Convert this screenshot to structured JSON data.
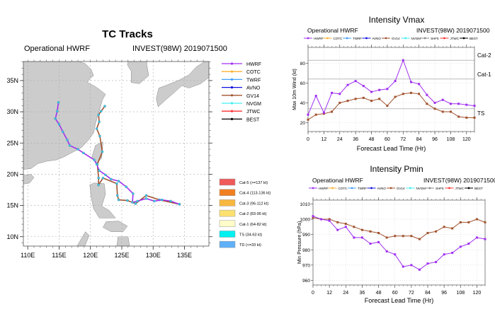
{
  "map_panel": {
    "title": "TC Tracks",
    "left_label": "Operational HWRF",
    "right_label": "INVEST(98W) 2019071500",
    "lon_ticks": [
      110,
      115,
      120,
      125,
      130,
      135
    ],
    "lon_tick_labels": [
      "110E",
      "115E",
      "120E",
      "125E",
      "130E",
      "135E"
    ],
    "lat_ticks": [
      10,
      15,
      20,
      25,
      30,
      35
    ],
    "lat_tick_labels": [
      "10N",
      "15N",
      "20N",
      "25N",
      "30N",
      "35N"
    ],
    "lon_range": [
      109.3,
      138.9
    ],
    "lat_range": [
      8.5,
      38.05
    ],
    "land_color": "#cccccc",
    "marker_color": "#3fc8e4",
    "legend": [
      {
        "name": "HWRF",
        "color": "#a030f0"
      },
      {
        "name": "COTC",
        "color": "#ffb030"
      },
      {
        "name": "TWRF",
        "color": "#40a0ff"
      },
      {
        "name": "AVNO",
        "color": "#1010e0"
      },
      {
        "name": "GV14",
        "color": "#a0522d"
      },
      {
        "name": "NVGM",
        "color": "#40f0f0"
      },
      {
        "name": "JTWC",
        "color": "#ff3030"
      },
      {
        "name": "BEST",
        "color": "#000000"
      }
    ],
    "category_legend": [
      {
        "label": "Cat-5 (>=137 kt)",
        "color": "#f05a5a"
      },
      {
        "label": "Cat-4 (113-136 kt)",
        "color": "#f08020"
      },
      {
        "label": "Cat-3 (96-112 kt)",
        "color": "#f8b840"
      },
      {
        "label": "Cat-2 (83-95 kt)",
        "color": "#fce070"
      },
      {
        "label": "Cat-1 (64-82 kt)",
        "color": "#fefcc8"
      },
      {
        "label": "TS (34-63 kt)",
        "color": "#00f0f0"
      },
      {
        "label": "TD (<=33 kt)",
        "color": "#60b0f8"
      }
    ],
    "tracks": [
      {
        "name": "GV14",
        "color": "#a0522d",
        "points": [
          [
            134.2,
            15.2
          ],
          [
            131.0,
            15.9
          ],
          [
            128.9,
            16.6
          ],
          [
            127.2,
            15.3
          ],
          [
            125.9,
            15.8
          ],
          [
            124.5,
            15.9
          ],
          [
            124.3,
            16.6
          ],
          [
            124.2,
            18.5
          ],
          [
            122.0,
            19.4
          ],
          [
            121.3,
            18.3
          ],
          [
            121.3,
            19.4
          ],
          [
            121.1,
            21.6
          ],
          [
            121.9,
            23.6
          ],
          [
            121.5,
            26.1
          ],
          [
            121.0,
            27.3
          ],
          [
            121.4,
            28.4
          ],
          [
            121.3,
            29.5
          ],
          [
            121.7,
            30.1
          ],
          [
            122.3,
            30.9
          ]
        ]
      },
      {
        "name": "HWRF",
        "color": "#a030f0",
        "points": [
          [
            134.2,
            15.2
          ],
          [
            132.8,
            15.7
          ],
          [
            131.4,
            15.9
          ],
          [
            130.2,
            15.7
          ],
          [
            128.9,
            16.1
          ],
          [
            127.5,
            15.7
          ],
          [
            126.7,
            15.5
          ],
          [
            126.8,
            16.9
          ],
          [
            125.7,
            18.0
          ],
          [
            124.5,
            18.9
          ],
          [
            123.3,
            19.2
          ],
          [
            122.4,
            19.9
          ],
          [
            121.4,
            20.6
          ],
          [
            121.0,
            21.6
          ],
          [
            120.6,
            22.3
          ],
          [
            118.9,
            23.4
          ],
          [
            118.0,
            24.0
          ],
          [
            116.7,
            24.6
          ],
          [
            116.3,
            25.5
          ],
          [
            115.6,
            26.8
          ],
          [
            115.0,
            28.0
          ],
          [
            114.4,
            28.9
          ],
          [
            114.7,
            30.1
          ],
          [
            114.9,
            31.5
          ]
        ]
      }
    ]
  },
  "vmax_panel": {
    "left_label": "Operational HWRF",
    "right_label": "INVEST(98W) 2019071500",
    "legend": [
      {
        "name": "HWRF",
        "color": "#a030f0"
      },
      {
        "name": "COTC",
        "color": "#ffb030"
      },
      {
        "name": "TWRF",
        "color": "#40a0ff"
      },
      {
        "name": "AVNO",
        "color": "#1010e0"
      },
      {
        "name": "GV14",
        "color": "#a0522d"
      },
      {
        "name": "NVGM",
        "color": "#40f0f0"
      },
      {
        "name": "SHF5",
        "color": "#888888"
      },
      {
        "name": "JTWC",
        "color": "#ff3030"
      },
      {
        "name": "BEST",
        "color": "#000000"
      }
    ]
  },
  "pmin_panel": {
    "left_label": "Operational HWRF",
    "right_label": "INVEST(98W) 2019071500",
    "legend": [
      {
        "name": "HWRF",
        "color": "#a030f0"
      },
      {
        "name": "COTC",
        "color": "#ffb030"
      },
      {
        "name": "TWRF",
        "color": "#40a0ff"
      },
      {
        "name": "AVNO",
        "color": "#1010e0"
      },
      {
        "name": "GV14",
        "color": "#a0522d"
      },
      {
        "name": "NVGM",
        "color": "#40f0f0"
      },
      {
        "name": "SHF5",
        "color": "#888888"
      },
      {
        "name": "JTWC",
        "color": "#ff3030"
      },
      {
        "name": "BEST",
        "color": "#000000"
      }
    ]
  },
  "chart_data": [
    {
      "type": "line",
      "title": "Intensity Vmax",
      "xlabel": "Forecast Lead Time (Hr)",
      "ylabel": "Max 10m Wind (kt)",
      "x": [
        0,
        6,
        12,
        18,
        24,
        30,
        36,
        42,
        48,
        54,
        60,
        66,
        72,
        78,
        84,
        90,
        96,
        102,
        108,
        114,
        120,
        126
      ],
      "xticks": [
        0,
        12,
        24,
        36,
        48,
        60,
        72,
        84,
        96,
        108,
        120
      ],
      "yticks": [
        20,
        40,
        60,
        80
      ],
      "xlim": [
        0,
        126
      ],
      "ylim": [
        11,
        96
      ],
      "grid": true,
      "reference_lines": [
        {
          "label": "Cat-2",
          "value": 83
        },
        {
          "label": "Cat-1",
          "value": 64
        },
        {
          "label": "TS",
          "value": 34
        }
      ],
      "series": [
        {
          "name": "HWRF",
          "color": "#a030f0",
          "values": [
            28,
            47,
            30,
            50,
            49,
            58,
            62,
            57,
            51,
            53,
            54,
            62,
            83,
            61,
            59,
            48,
            40,
            43,
            39,
            39,
            38,
            37
          ]
        },
        {
          "name": "GV14",
          "color": "#a0522d",
          "values": [
            23,
            28,
            29,
            31,
            40,
            42,
            44,
            45,
            42,
            44,
            37,
            46,
            49,
            50,
            49,
            39,
            34,
            31,
            31,
            26,
            25,
            25
          ]
        }
      ]
    },
    {
      "type": "line",
      "title": "Intensity Pmin",
      "xlabel": "Forecast Lead Time (Hr)",
      "ylabel": "Min Pressure (hPa)",
      "x": [
        0,
        6,
        12,
        18,
        24,
        30,
        36,
        42,
        48,
        54,
        60,
        66,
        72,
        78,
        84,
        90,
        96,
        102,
        108,
        114,
        120,
        126
      ],
      "xticks": [
        0,
        12,
        24,
        36,
        48,
        60,
        72,
        84,
        96,
        108,
        120
      ],
      "yticks": [
        960,
        970,
        980,
        990,
        1000,
        1010
      ],
      "xlim": [
        0,
        126
      ],
      "ylim": [
        957,
        1012.5
      ],
      "grid": true,
      "series": [
        {
          "name": "HWRF",
          "color": "#a030f0",
          "values": [
            1002,
            1000,
            999,
            993,
            995,
            988,
            988,
            984,
            985,
            979,
            977,
            969,
            970,
            967,
            971,
            972,
            977,
            978,
            982,
            984,
            988,
            987
          ]
        },
        {
          "name": "GV14",
          "color": "#a0522d",
          "values": [
            1001,
            1000,
            1000,
            998,
            997,
            995,
            993,
            992,
            991,
            988,
            989,
            989,
            989,
            987,
            991,
            992,
            995,
            994,
            998,
            998,
            1000,
            998
          ]
        }
      ]
    }
  ]
}
